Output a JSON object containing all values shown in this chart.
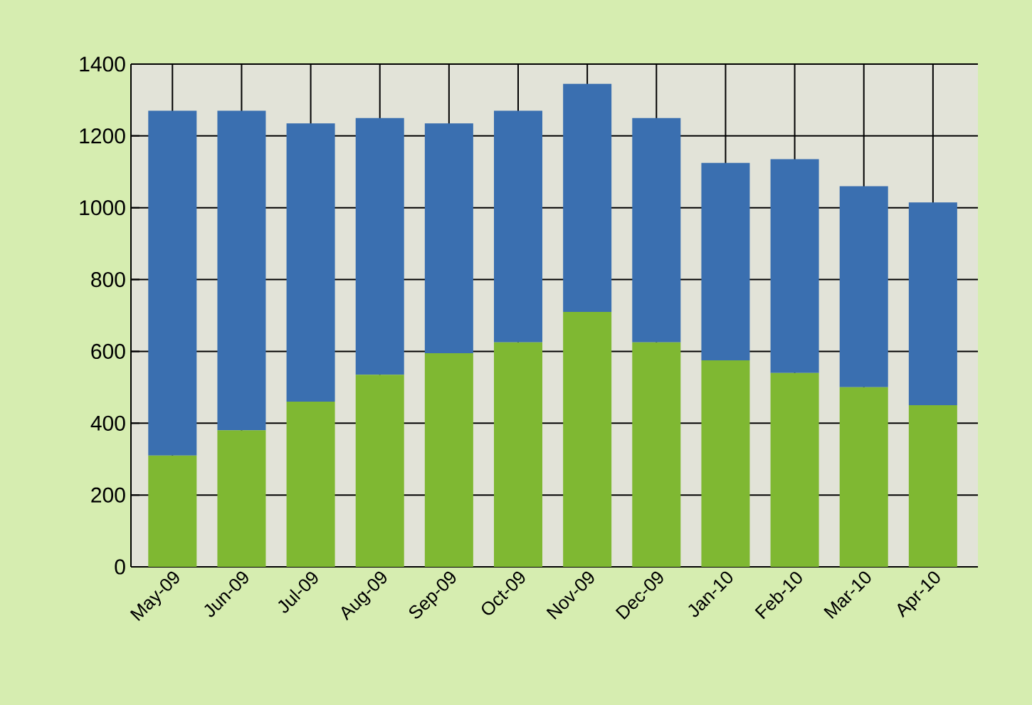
{
  "chart_data": {
    "type": "bar",
    "stacked": true,
    "categories": [
      "May-09",
      "Jun-09",
      "Jul-09",
      "Aug-09",
      "Sep-09",
      "Oct-09",
      "Nov-09",
      "Dec-09",
      "Jan-10",
      "Feb-10",
      "Mar-10",
      "Apr-10"
    ],
    "series": [
      {
        "color": "#7fb832",
        "values": [
          310,
          380,
          460,
          535,
          595,
          625,
          710,
          625,
          575,
          540,
          500,
          450
        ]
      },
      {
        "color": "#3a6fb0",
        "values": [
          960,
          890,
          775,
          715,
          640,
          645,
          635,
          625,
          550,
          595,
          560,
          565
        ]
      }
    ],
    "ylim": [
      0,
      1400
    ],
    "yticks": [
      0,
      200,
      400,
      600,
      800,
      1000,
      1200,
      1400
    ],
    "grid": true
  }
}
